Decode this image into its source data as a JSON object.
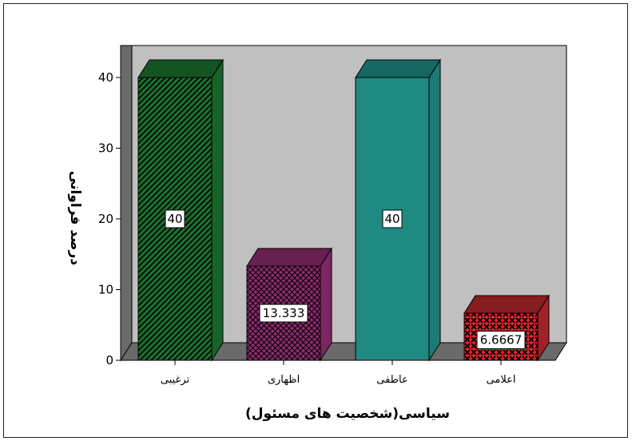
{
  "chart_data": {
    "type": "bar",
    "title": "",
    "xlabel": "سیاسی(شخصیت های مسئول)",
    "ylabel": "درصد فراوانی",
    "ylim": [
      0,
      40
    ],
    "yticks": [
      "0",
      "10",
      "20",
      "30",
      "40"
    ],
    "categories": [
      "ترغیبی",
      "اظهاری",
      "عاطفی",
      "اعلامی"
    ],
    "values": [
      40,
      13.333,
      40,
      6.6667
    ],
    "value_labels": [
      "40",
      "13.333",
      "40",
      "6.6667"
    ],
    "colors": [
      "#1b6e2e",
      "#8a2b6c",
      "#1e8a82",
      "#b3262a"
    ],
    "patterns": [
      "diagonal-hatch",
      "crosshatch",
      "solid",
      "crosses"
    ],
    "three_d": true,
    "grid": false,
    "legend": "none",
    "background": "#c0c0c0"
  }
}
